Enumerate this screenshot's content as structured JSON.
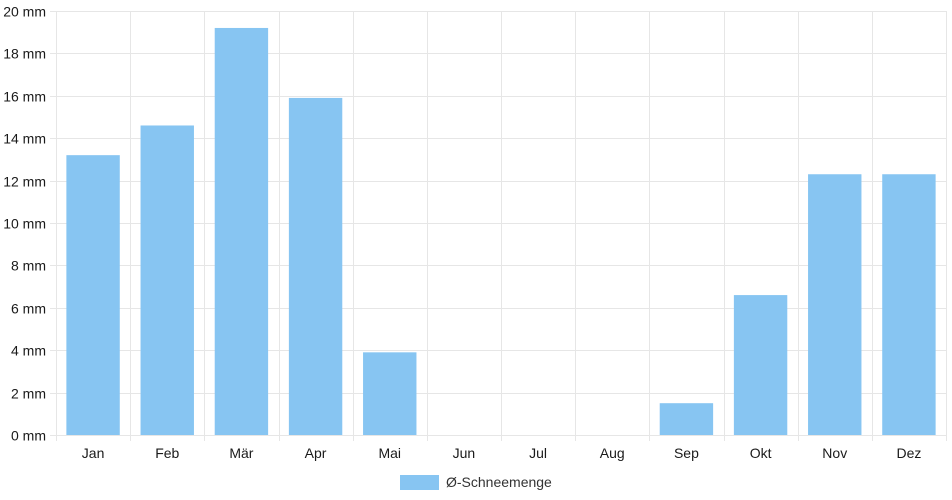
{
  "chart_data": {
    "type": "bar",
    "categories": [
      "Jan",
      "Feb",
      "Mär",
      "Apr",
      "Mai",
      "Jun",
      "Jul",
      "Aug",
      "Sep",
      "Okt",
      "Nov",
      "Dez"
    ],
    "series": [
      {
        "name": "Ø-Schneemenge",
        "values": [
          13.2,
          14.6,
          19.2,
          15.9,
          3.9,
          0,
          0,
          0,
          1.5,
          6.6,
          12.3,
          12.3
        ],
        "color": "#87c5f2"
      }
    ],
    "y_unit": "mm",
    "ylim": [
      0,
      20
    ],
    "y_ticks": [
      0,
      2,
      4,
      6,
      8,
      10,
      12,
      14,
      16,
      18,
      20
    ],
    "grid": true,
    "legend_position": "bottom"
  }
}
